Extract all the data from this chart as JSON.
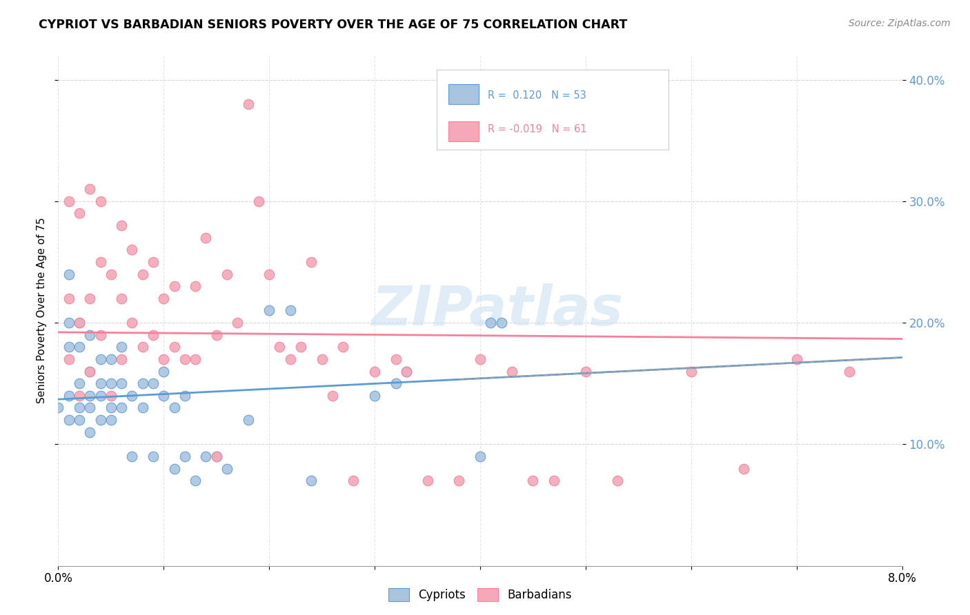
{
  "title": "CYPRIOT VS BARBADIAN SENIORS POVERTY OVER THE AGE OF 75 CORRELATION CHART",
  "source": "Source: ZipAtlas.com",
  "ylabel": "Seniors Poverty Over the Age of 75",
  "xmin": 0.0,
  "xmax": 0.08,
  "ymin": 0.0,
  "ymax": 0.42,
  "yticks": [
    0.1,
    0.2,
    0.3,
    0.4
  ],
  "background_color": "#ffffff",
  "cypriot_color": "#aac4e0",
  "barbadian_color": "#f4a8b8",
  "cypriot_R": 0.12,
  "cypriot_N": 53,
  "barbadian_R": -0.019,
  "barbadian_N": 61,
  "cypriot_line_color": "#5b9bd5",
  "barbadian_line_color": "#f48099",
  "trend_line_color": "#a0a0a0",
  "cypriot_x": [
    0.0,
    0.001,
    0.001,
    0.001,
    0.001,
    0.001,
    0.002,
    0.002,
    0.002,
    0.002,
    0.002,
    0.003,
    0.003,
    0.003,
    0.003,
    0.003,
    0.004,
    0.004,
    0.004,
    0.004,
    0.005,
    0.005,
    0.005,
    0.005,
    0.006,
    0.006,
    0.006,
    0.007,
    0.007,
    0.008,
    0.008,
    0.009,
    0.009,
    0.01,
    0.01,
    0.011,
    0.011,
    0.012,
    0.012,
    0.013,
    0.014,
    0.015,
    0.016,
    0.018,
    0.02,
    0.022,
    0.024,
    0.03,
    0.032,
    0.033,
    0.04,
    0.041,
    0.042
  ],
  "cypriot_y": [
    0.13,
    0.12,
    0.14,
    0.18,
    0.2,
    0.24,
    0.12,
    0.13,
    0.15,
    0.18,
    0.2,
    0.11,
    0.13,
    0.14,
    0.16,
    0.19,
    0.12,
    0.14,
    0.15,
    0.17,
    0.12,
    0.13,
    0.15,
    0.17,
    0.13,
    0.15,
    0.18,
    0.09,
    0.14,
    0.13,
    0.15,
    0.09,
    0.15,
    0.14,
    0.16,
    0.08,
    0.13,
    0.09,
    0.14,
    0.07,
    0.09,
    0.09,
    0.08,
    0.12,
    0.21,
    0.21,
    0.07,
    0.14,
    0.15,
    0.16,
    0.09,
    0.2,
    0.2
  ],
  "barbadian_x": [
    0.001,
    0.001,
    0.001,
    0.002,
    0.002,
    0.002,
    0.003,
    0.003,
    0.003,
    0.004,
    0.004,
    0.004,
    0.005,
    0.005,
    0.006,
    0.006,
    0.006,
    0.007,
    0.007,
    0.008,
    0.008,
    0.009,
    0.009,
    0.01,
    0.01,
    0.011,
    0.011,
    0.012,
    0.013,
    0.013,
    0.014,
    0.015,
    0.015,
    0.016,
    0.017,
    0.018,
    0.019,
    0.02,
    0.021,
    0.022,
    0.023,
    0.024,
    0.025,
    0.026,
    0.027,
    0.028,
    0.03,
    0.032,
    0.033,
    0.035,
    0.038,
    0.04,
    0.043,
    0.045,
    0.047,
    0.05,
    0.053,
    0.06,
    0.065,
    0.07,
    0.075
  ],
  "barbadian_y": [
    0.17,
    0.22,
    0.3,
    0.14,
    0.2,
    0.29,
    0.16,
    0.22,
    0.31,
    0.19,
    0.25,
    0.3,
    0.14,
    0.24,
    0.17,
    0.22,
    0.28,
    0.2,
    0.26,
    0.18,
    0.24,
    0.19,
    0.25,
    0.17,
    0.22,
    0.18,
    0.23,
    0.17,
    0.17,
    0.23,
    0.27,
    0.09,
    0.19,
    0.24,
    0.2,
    0.38,
    0.3,
    0.24,
    0.18,
    0.17,
    0.18,
    0.25,
    0.17,
    0.14,
    0.18,
    0.07,
    0.16,
    0.17,
    0.16,
    0.07,
    0.07,
    0.17,
    0.16,
    0.07,
    0.07,
    0.16,
    0.07,
    0.16,
    0.08,
    0.17,
    0.16
  ]
}
